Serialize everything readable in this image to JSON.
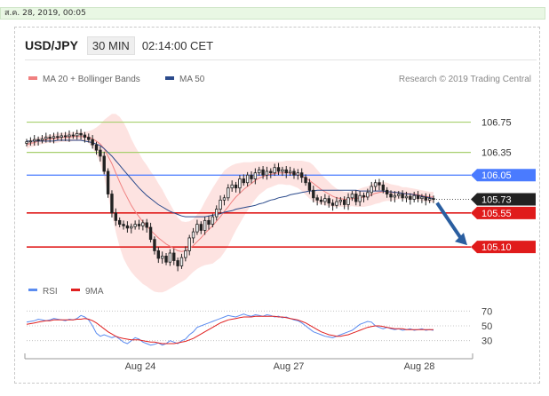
{
  "timestamp": "ส.ค. 28, 2019, 00:05",
  "header": {
    "symbol": "USD/JPY",
    "timeframe": "30 MIN",
    "time": "02:14:00 CET"
  },
  "legend": {
    "ma20": "MA 20 + Bollinger Bands",
    "ma50": "MA 50",
    "credit": "Research © 2019 Trading Central"
  },
  "rsi_legend": {
    "rsi": "RSI",
    "ma9": "9MA"
  },
  "colors": {
    "ma20": "#f08080",
    "ma50": "#2b4a8b",
    "band": "#fde0de",
    "red_level": "#e01b1b",
    "blue_level": "#4a7bff",
    "green_level": "#a7cf6e",
    "last_price": "#222222",
    "arrow": "#2a5ea0",
    "rsi": "#5b8cf0",
    "ma9": "#e02020"
  },
  "chart_data": {
    "type": "candlestick",
    "x_ticks": [
      "Aug 24",
      "Aug 27",
      "Aug 28"
    ],
    "y_range": [
      104.75,
      107.05
    ],
    "levels": [
      {
        "label": "106.75",
        "value": 106.75,
        "kind": "green"
      },
      {
        "label": "106.35",
        "value": 106.35,
        "kind": "green"
      },
      {
        "label": "106.05",
        "value": 106.05,
        "kind": "blue"
      },
      {
        "label": "105.73",
        "value": 105.73,
        "kind": "last"
      },
      {
        "label": "105.55",
        "value": 105.55,
        "kind": "red"
      },
      {
        "label": "105.10",
        "value": 105.1,
        "kind": "red"
      }
    ],
    "close": [
      106.49,
      106.5,
      106.52,
      106.51,
      106.53,
      106.55,
      106.54,
      106.56,
      106.55,
      106.57,
      106.56,
      106.58,
      106.57,
      106.6,
      106.58,
      106.55,
      106.52,
      106.45,
      106.38,
      106.3,
      106.1,
      105.8,
      105.55,
      105.45,
      105.4,
      105.38,
      105.35,
      105.37,
      105.4,
      105.38,
      105.42,
      105.36,
      105.2,
      105.05,
      104.95,
      104.98,
      104.9,
      105.02,
      104.92,
      104.85,
      104.96,
      105.05,
      105.22,
      105.3,
      105.4,
      105.32,
      105.45,
      105.4,
      105.5,
      105.6,
      105.72,
      105.75,
      105.88,
      105.92,
      105.88,
      106.0,
      105.95,
      106.05,
      106.0,
      106.08,
      106.12,
      106.05,
      106.1,
      106.08,
      106.15,
      106.1,
      106.12,
      106.08,
      106.1,
      106.05,
      106.08,
      106.02,
      105.95,
      105.85,
      105.75,
      105.72,
      105.7,
      105.74,
      105.68,
      105.65,
      105.7,
      105.72,
      105.66,
      105.75,
      105.8,
      105.7,
      105.78,
      105.76,
      105.82,
      105.9,
      105.95,
      105.92,
      105.85,
      105.8,
      105.76,
      105.78,
      105.8,
      105.75,
      105.77,
      105.73,
      105.78,
      105.74,
      105.76,
      105.72,
      105.74,
      105.73
    ],
    "ma20": [
      106.45,
      106.47,
      106.48,
      106.5,
      106.51,
      106.52,
      106.53,
      106.53,
      106.54,
      106.55,
      106.55,
      106.55,
      106.56,
      106.56,
      106.56,
      106.56,
      106.55,
      106.53,
      106.5,
      106.46,
      106.4,
      106.3,
      106.2,
      106.08,
      105.96,
      105.85,
      105.75,
      105.65,
      105.57,
      105.5,
      105.43,
      105.38,
      105.32,
      105.27,
      105.22,
      105.18,
      105.14,
      105.11,
      105.08,
      105.05,
      105.04,
      105.05,
      105.08,
      105.12,
      105.17,
      105.22,
      105.28,
      105.33,
      105.38,
      105.44,
      105.5,
      105.57,
      105.63,
      105.7,
      105.76,
      105.81,
      105.86,
      105.9,
      105.94,
      105.98,
      106.01,
      106.03,
      106.05,
      106.06,
      106.07,
      106.08,
      106.08,
      106.08,
      106.08,
      106.07,
      106.06,
      106.04,
      106.01,
      105.98,
      105.94,
      105.9,
      105.86,
      105.83,
      105.8,
      105.77,
      105.75,
      105.74,
      105.73,
      105.73,
      105.74,
      105.74,
      105.75,
      105.76,
      105.77,
      105.79,
      105.81,
      105.82,
      105.83,
      105.83,
      105.82,
      105.82,
      105.82,
      105.81,
      105.81,
      105.8,
      105.8,
      105.79,
      105.78,
      105.77,
      105.76,
      105.76
    ],
    "bb_width": [
      0.05,
      0.05,
      0.05,
      0.05,
      0.05,
      0.05,
      0.05,
      0.06,
      0.06,
      0.06,
      0.06,
      0.06,
      0.06,
      0.06,
      0.06,
      0.06,
      0.08,
      0.12,
      0.18,
      0.26,
      0.38,
      0.52,
      0.66,
      0.78,
      0.86,
      0.9,
      0.9,
      0.88,
      0.86,
      0.84,
      0.82,
      0.8,
      0.78,
      0.76,
      0.72,
      0.68,
      0.62,
      0.56,
      0.5,
      0.44,
      0.4,
      0.38,
      0.36,
      0.35,
      0.36,
      0.38,
      0.42,
      0.46,
      0.5,
      0.52,
      0.54,
      0.54,
      0.52,
      0.48,
      0.44,
      0.4,
      0.36,
      0.32,
      0.28,
      0.25,
      0.22,
      0.2,
      0.18,
      0.17,
      0.16,
      0.15,
      0.15,
      0.16,
      0.16,
      0.17,
      0.18,
      0.2,
      0.22,
      0.24,
      0.24,
      0.22,
      0.2,
      0.18,
      0.16,
      0.14,
      0.12,
      0.11,
      0.1,
      0.1,
      0.1,
      0.11,
      0.12,
      0.13,
      0.13,
      0.14,
      0.14,
      0.14,
      0.13,
      0.12,
      0.11,
      0.1,
      0.09,
      0.08,
      0.08,
      0.08,
      0.07,
      0.07,
      0.07,
      0.07,
      0.07,
      0.07
    ],
    "ma50": [
      106.5,
      106.5,
      106.5,
      106.5,
      106.5,
      106.5,
      106.5,
      106.5,
      106.51,
      106.51,
      106.51,
      106.51,
      106.51,
      106.51,
      106.51,
      106.5,
      106.49,
      106.48,
      106.46,
      106.44,
      106.4,
      106.35,
      106.3,
      106.24,
      106.18,
      106.12,
      106.06,
      106.0,
      105.94,
      105.88,
      105.83,
      105.78,
      105.74,
      105.7,
      105.66,
      105.63,
      105.6,
      105.57,
      105.55,
      105.53,
      105.51,
      105.5,
      105.5,
      105.5,
      105.5,
      105.5,
      105.5,
      105.51,
      105.52,
      105.53,
      105.54,
      105.56,
      105.57,
      105.58,
      105.6,
      105.61,
      105.62,
      105.63,
      105.64,
      105.65,
      105.67,
      105.68,
      105.7,
      105.72,
      105.73,
      105.75,
      105.76,
      105.77,
      105.79,
      105.8,
      105.81,
      105.82,
      105.83,
      105.84,
      105.84,
      105.85,
      105.85,
      105.85,
      105.85,
      105.85,
      105.85,
      105.85,
      105.85,
      105.85,
      105.85,
      105.85,
      105.84,
      105.84,
      105.84,
      105.84,
      105.84,
      105.84,
      105.84,
      105.83,
      105.83,
      105.82,
      105.82,
      105.81,
      105.8,
      105.8,
      105.79,
      105.78,
      105.77,
      105.76,
      105.75,
      105.74
    ],
    "rsi": {
      "y_ticks": [
        "70",
        "50",
        "30"
      ],
      "range": [
        20,
        80
      ],
      "values": [
        55,
        56,
        57,
        59,
        58,
        57,
        58,
        60,
        59,
        58,
        57,
        59,
        58,
        60,
        64,
        62,
        58,
        50,
        40,
        36,
        38,
        36,
        34,
        36,
        32,
        28,
        26,
        30,
        34,
        32,
        28,
        26,
        24,
        25,
        27,
        24,
        26,
        30,
        28,
        26,
        30,
        32,
        38,
        42,
        48,
        50,
        52,
        54,
        56,
        58,
        60,
        62,
        64,
        63,
        62,
        64,
        66,
        64,
        63,
        65,
        64,
        63,
        65,
        64,
        62,
        63,
        61,
        62,
        60,
        58,
        57,
        54,
        50,
        46,
        42,
        40,
        38,
        36,
        35,
        34,
        36,
        38,
        40,
        42,
        44,
        48,
        52,
        54,
        56,
        55,
        50,
        48,
        46,
        48,
        46,
        45,
        46,
        44,
        45,
        46,
        44,
        45,
        46,
        44,
        45,
        44
      ],
      "ma9": [
        52,
        53,
        54,
        55,
        56,
        57,
        57,
        58,
        58,
        58,
        58,
        58,
        58,
        59,
        59,
        60,
        59,
        57,
        54,
        50,
        46,
        42,
        39,
        36,
        34,
        33,
        32,
        31,
        31,
        31,
        30,
        29,
        28,
        28,
        27,
        26,
        26,
        26,
        26,
        27,
        28,
        29,
        31,
        33,
        36,
        39,
        42,
        45,
        48,
        51,
        54,
        56,
        58,
        59,
        60,
        61,
        62,
        62,
        62,
        63,
        63,
        63,
        63,
        63,
        63,
        62,
        62,
        61,
        60,
        59,
        58,
        56,
        54,
        51,
        48,
        45,
        42,
        40,
        38,
        37,
        36,
        36,
        37,
        38,
        40,
        42,
        44,
        46,
        48,
        49,
        50,
        50,
        49,
        48,
        47,
        46,
        46,
        46,
        45,
        45,
        45,
        45,
        45,
        45,
        45,
        45
      ]
    }
  }
}
